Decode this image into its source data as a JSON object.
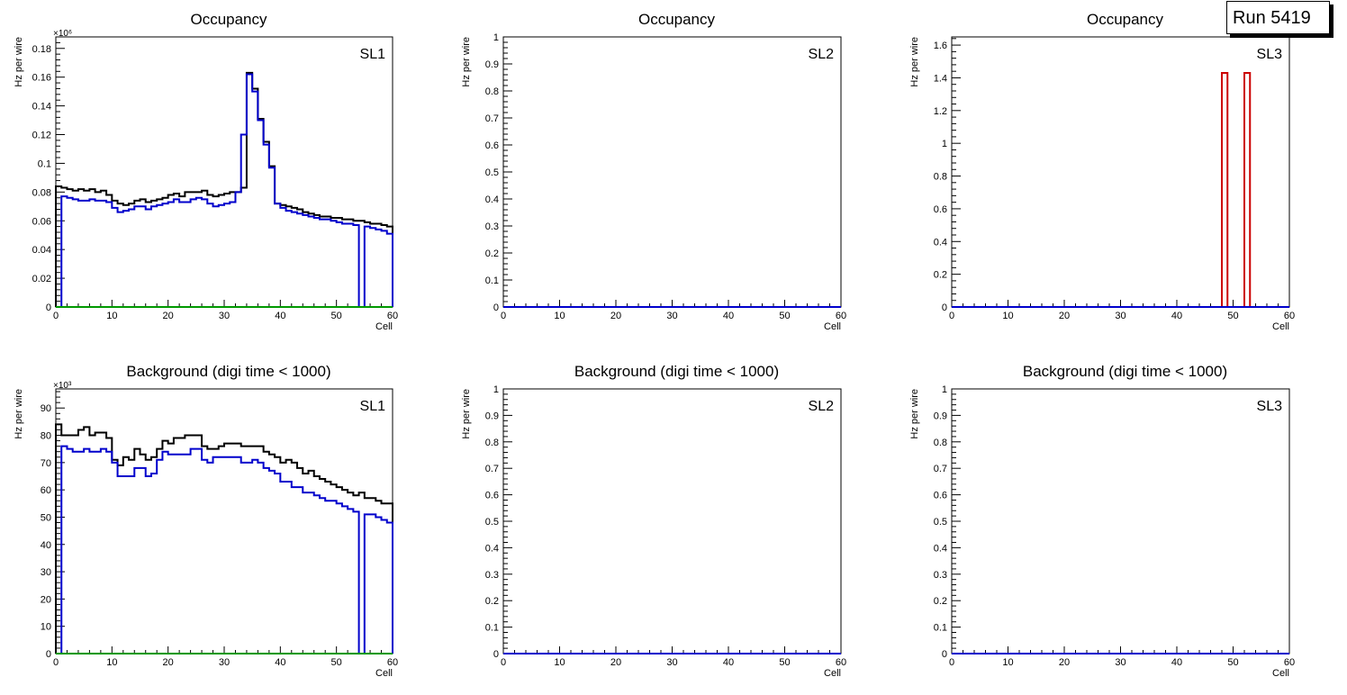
{
  "run_label": "Run 5419",
  "colors": {
    "total": "#000000",
    "blue": "#0000cc",
    "red": "#cc0000",
    "green": "#009900"
  },
  "chart_data": [
    {
      "type": "histogram",
      "title": "Occupancy",
      "label": "SL1",
      "xlabel": "Cell",
      "ylabel": "Hz per wire",
      "exponent": "×10⁶",
      "xlim": [
        0,
        60
      ],
      "ylim": [
        0,
        0.188
      ],
      "yticks": [
        "0",
        "0.02",
        "0.04",
        "0.06",
        "0.08",
        "0.1",
        "0.12",
        "0.14",
        "0.16",
        "0.18"
      ],
      "ytick_values": [
        0,
        0.02,
        0.04,
        0.06,
        0.08,
        0.1,
        0.12,
        0.14,
        0.16,
        0.18
      ],
      "xticks": [
        "0",
        "10",
        "20",
        "30",
        "40",
        "50",
        "60"
      ],
      "series": [
        {
          "color": "black",
          "values": [
            0.084,
            0.083,
            0.082,
            0.081,
            0.082,
            0.081,
            0.082,
            0.08,
            0.081,
            0.078,
            0.074,
            0.072,
            0.071,
            0.072,
            0.074,
            0.075,
            0.073,
            0.074,
            0.075,
            0.076,
            0.078,
            0.079,
            0.077,
            0.08,
            0.08,
            0.08,
            0.081,
            0.078,
            0.077,
            0.078,
            0.079,
            0.08,
            0.08,
            0.083,
            0.163,
            0.152,
            0.131,
            0.115,
            0.098,
            0.072,
            0.071,
            0.07,
            0.069,
            0.068,
            0.066,
            0.065,
            0.064,
            0.063,
            0.063,
            0.062,
            0.062,
            0.061,
            0.061,
            0.06,
            0.06,
            0.059,
            0.058,
            0.058,
            0.057,
            0.056
          ]
        },
        {
          "color": "blue",
          "values": [
            0,
            0.077,
            0.076,
            0.075,
            0.074,
            0.074,
            0.075,
            0.074,
            0.074,
            0.073,
            0.069,
            0.066,
            0.067,
            0.068,
            0.07,
            0.07,
            0.068,
            0.07,
            0.071,
            0.072,
            0.073,
            0.075,
            0.073,
            0.073,
            0.075,
            0.076,
            0.075,
            0.072,
            0.07,
            0.071,
            0.072,
            0.073,
            0.08,
            0.12,
            0.162,
            0.15,
            0.13,
            0.113,
            0.097,
            0.072,
            0.069,
            0.067,
            0.066,
            0.065,
            0.064,
            0.063,
            0.062,
            0.061,
            0.061,
            0.06,
            0.059,
            0.058,
            0.058,
            0.057,
            0,
            0.056,
            0.055,
            0.054,
            0.053,
            0.051
          ]
        },
        {
          "color": "green",
          "values": [
            0,
            0,
            0,
            0,
            0,
            0,
            0,
            0,
            0,
            0,
            0,
            0,
            0,
            0,
            0,
            0,
            0,
            0,
            0,
            0,
            0,
            0,
            0,
            0,
            0,
            0,
            0,
            0,
            0,
            0,
            0,
            0,
            0,
            0,
            0,
            0,
            0,
            0,
            0,
            0,
            0,
            0,
            0,
            0,
            0,
            0,
            0,
            0,
            0,
            0,
            0,
            0,
            0,
            0,
            0,
            0,
            0,
            0,
            0,
            0
          ]
        }
      ]
    },
    {
      "type": "histogram",
      "title": "Occupancy",
      "label": "SL2",
      "xlabel": "Cell",
      "ylabel": "Hz per wire",
      "exponent": "",
      "xlim": [
        0,
        60
      ],
      "ylim": [
        0,
        1
      ],
      "yticks": [
        "0",
        "0.1",
        "0.2",
        "0.3",
        "0.4",
        "0.5",
        "0.6",
        "0.7",
        "0.8",
        "0.9",
        "1"
      ],
      "ytick_values": [
        0,
        0.1,
        0.2,
        0.3,
        0.4,
        0.5,
        0.6,
        0.7,
        0.8,
        0.9,
        1
      ],
      "xticks": [
        "0",
        "10",
        "20",
        "30",
        "40",
        "50",
        "60"
      ],
      "series": [
        {
          "color": "blue",
          "values": [
            0,
            0,
            0,
            0,
            0,
            0,
            0,
            0,
            0,
            0,
            0,
            0,
            0,
            0,
            0,
            0,
            0,
            0,
            0,
            0,
            0,
            0,
            0,
            0,
            0,
            0,
            0,
            0,
            0,
            0,
            0,
            0,
            0,
            0,
            0,
            0,
            0,
            0,
            0,
            0,
            0,
            0,
            0,
            0,
            0,
            0,
            0,
            0,
            0,
            0,
            0,
            0,
            0,
            0,
            0,
            0,
            0,
            0,
            0,
            0
          ]
        }
      ]
    },
    {
      "type": "histogram",
      "title": "Occupancy",
      "label": "SL3",
      "xlabel": "Cell",
      "ylabel": "Hz per wire",
      "exponent": "",
      "xlim": [
        0,
        60
      ],
      "ylim": [
        0,
        1.65
      ],
      "yticks": [
        "0",
        "0.2",
        "0.4",
        "0.6",
        "0.8",
        "1",
        "1.2",
        "1.4",
        "1.6"
      ],
      "ytick_values": [
        0,
        0.2,
        0.4,
        0.6,
        0.8,
        1,
        1.2,
        1.4,
        1.6
      ],
      "xticks": [
        "0",
        "10",
        "20",
        "30",
        "40",
        "50",
        "60"
      ],
      "series": [
        {
          "color": "red",
          "values": [
            0,
            0,
            0,
            0,
            0,
            0,
            0,
            0,
            0,
            0,
            0,
            0,
            0,
            0,
            0,
            0,
            0,
            0,
            0,
            0,
            0,
            0,
            0,
            0,
            0,
            0,
            0,
            0,
            0,
            0,
            0,
            0,
            0,
            0,
            0,
            0,
            0,
            0,
            0,
            0,
            0,
            0,
            0,
            0,
            0,
            0,
            0,
            0,
            1.43,
            0,
            0,
            0,
            1.43,
            0,
            0,
            0,
            0,
            0,
            0,
            0
          ]
        },
        {
          "color": "blue",
          "values": [
            0,
            0,
            0,
            0,
            0,
            0,
            0,
            0,
            0,
            0,
            0,
            0,
            0,
            0,
            0,
            0,
            0,
            0,
            0,
            0,
            0,
            0,
            0,
            0,
            0,
            0,
            0,
            0,
            0,
            0,
            0,
            0,
            0,
            0,
            0,
            0,
            0,
            0,
            0,
            0,
            0,
            0,
            0,
            0,
            0,
            0,
            0,
            0,
            0,
            0,
            0,
            0,
            0,
            0,
            0,
            0,
            0,
            0,
            0,
            0
          ]
        }
      ]
    },
    {
      "type": "histogram",
      "title": "Background (digi time < 1000)",
      "label": "SL1",
      "xlabel": "Cell",
      "ylabel": "Hz per wire",
      "exponent": "×10³",
      "xlim": [
        0,
        60
      ],
      "ylim": [
        0,
        97
      ],
      "yticks": [
        "0",
        "10",
        "20",
        "30",
        "40",
        "50",
        "60",
        "70",
        "80",
        "90"
      ],
      "ytick_values": [
        0,
        10,
        20,
        30,
        40,
        50,
        60,
        70,
        80,
        90
      ],
      "xticks": [
        "0",
        "10",
        "20",
        "30",
        "40",
        "50",
        "60"
      ],
      "series": [
        {
          "color": "black",
          "values": [
            84,
            80,
            80,
            80,
            82,
            83,
            80,
            81,
            81,
            79,
            71,
            69,
            72,
            71,
            75,
            73,
            71,
            72,
            75,
            78,
            77,
            79,
            79,
            80,
            80,
            80,
            76,
            75,
            75,
            76,
            77,
            77,
            77,
            76,
            76,
            76,
            76,
            74,
            73,
            72,
            70,
            71,
            70,
            68,
            66,
            67,
            65,
            64,
            63,
            62,
            61,
            60,
            59,
            58,
            59,
            57,
            57,
            56,
            55,
            55
          ]
        },
        {
          "color": "blue",
          "values": [
            0,
            76,
            75,
            74,
            74,
            75,
            74,
            74,
            75,
            74,
            70,
            65,
            65,
            65,
            68,
            68,
            65,
            66,
            71,
            74,
            73,
            73,
            73,
            73,
            75,
            75,
            71,
            70,
            72,
            72,
            72,
            72,
            72,
            70,
            70,
            71,
            70,
            68,
            67,
            66,
            63,
            63,
            61,
            61,
            59,
            59,
            58,
            57,
            56,
            56,
            55,
            54,
            53,
            52,
            0,
            51,
            51,
            50,
            49,
            48
          ]
        },
        {
          "color": "green",
          "values": [
            0,
            0,
            0,
            0,
            0,
            0,
            0,
            0,
            0,
            0,
            0,
            0,
            0,
            0,
            0,
            0,
            0,
            0,
            0,
            0,
            0,
            0,
            0,
            0,
            0,
            0,
            0,
            0,
            0,
            0,
            0,
            0,
            0,
            0,
            0,
            0,
            0,
            0,
            0,
            0,
            0,
            0,
            0,
            0,
            0,
            0,
            0,
            0,
            0,
            0,
            0,
            0,
            0,
            0,
            0,
            0,
            0,
            0,
            0,
            0
          ]
        }
      ]
    },
    {
      "type": "histogram",
      "title": "Background (digi time < 1000)",
      "label": "SL2",
      "xlabel": "Cell",
      "ylabel": "Hz per wire",
      "exponent": "",
      "xlim": [
        0,
        60
      ],
      "ylim": [
        0,
        1
      ],
      "yticks": [
        "0",
        "0.1",
        "0.2",
        "0.3",
        "0.4",
        "0.5",
        "0.6",
        "0.7",
        "0.8",
        "0.9",
        "1"
      ],
      "ytick_values": [
        0,
        0.1,
        0.2,
        0.3,
        0.4,
        0.5,
        0.6,
        0.7,
        0.8,
        0.9,
        1
      ],
      "xticks": [
        "0",
        "10",
        "20",
        "30",
        "40",
        "50",
        "60"
      ],
      "series": [
        {
          "color": "blue",
          "values": [
            0,
            0,
            0,
            0,
            0,
            0,
            0,
            0,
            0,
            0,
            0,
            0,
            0,
            0,
            0,
            0,
            0,
            0,
            0,
            0,
            0,
            0,
            0,
            0,
            0,
            0,
            0,
            0,
            0,
            0,
            0,
            0,
            0,
            0,
            0,
            0,
            0,
            0,
            0,
            0,
            0,
            0,
            0,
            0,
            0,
            0,
            0,
            0,
            0,
            0,
            0,
            0,
            0,
            0,
            0,
            0,
            0,
            0,
            0,
            0
          ]
        }
      ]
    },
    {
      "type": "histogram",
      "title": "Background (digi time < 1000)",
      "label": "SL3",
      "xlabel": "Cell",
      "ylabel": "Hz per wire",
      "exponent": "",
      "xlim": [
        0,
        60
      ],
      "ylim": [
        0,
        1
      ],
      "yticks": [
        "0",
        "0.1",
        "0.2",
        "0.3",
        "0.4",
        "0.5",
        "0.6",
        "0.7",
        "0.8",
        "0.9",
        "1"
      ],
      "ytick_values": [
        0,
        0.1,
        0.2,
        0.3,
        0.4,
        0.5,
        0.6,
        0.7,
        0.8,
        0.9,
        1
      ],
      "xticks": [
        "0",
        "10",
        "20",
        "30",
        "40",
        "50",
        "60"
      ],
      "series": [
        {
          "color": "blue",
          "values": [
            0,
            0,
            0,
            0,
            0,
            0,
            0,
            0,
            0,
            0,
            0,
            0,
            0,
            0,
            0,
            0,
            0,
            0,
            0,
            0,
            0,
            0,
            0,
            0,
            0,
            0,
            0,
            0,
            0,
            0,
            0,
            0,
            0,
            0,
            0,
            0,
            0,
            0,
            0,
            0,
            0,
            0,
            0,
            0,
            0,
            0,
            0,
            0,
            0,
            0,
            0,
            0,
            0,
            0,
            0,
            0,
            0,
            0,
            0,
            0
          ]
        }
      ]
    }
  ]
}
